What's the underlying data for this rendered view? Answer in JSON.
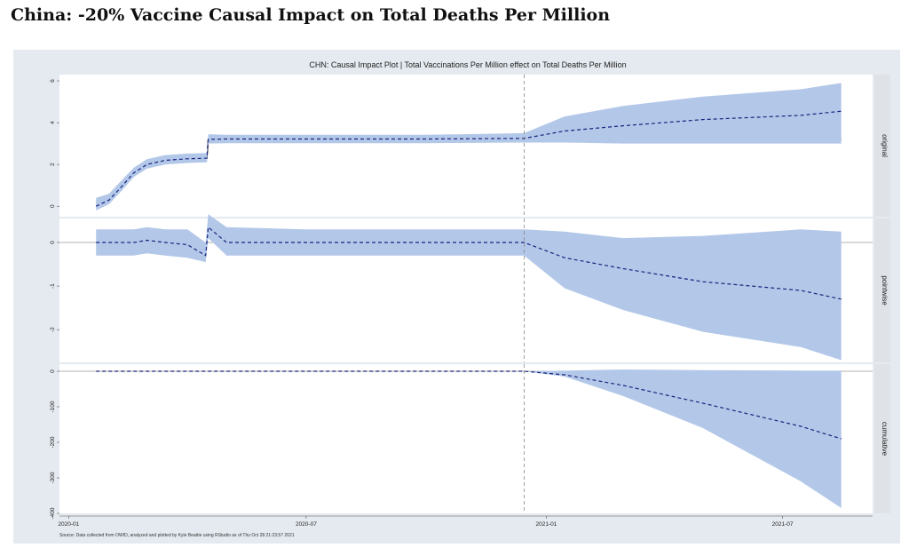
{
  "page": {
    "title": "China: -20% Vaccine Causal Impact on Total Deaths Per Million"
  },
  "figure": {
    "source_note": "Source: Data collected from OWID, analyzed and plotted by Kyle Beattie using RStudio as of Thu Oct 28 21:23:57 2021"
  },
  "chart_data": {
    "type": "line",
    "title": "CHN: Causal Impact Plot | Total Vaccinations Per Million effect on Total Deaths Per Million",
    "x_ticks": [
      "2020-01",
      "2020-07",
      "2021-01",
      "2021-07"
    ],
    "intervention_date": "2020-12-15",
    "colors": {
      "band": "#b3c8e8",
      "line_actual": "#111111",
      "line_predicted": "#1a237e",
      "zero_line": "#999999",
      "strip": "#dfe3e8"
    },
    "panels": [
      {
        "name": "original",
        "ylim": [
          -0.5,
          6.3
        ],
        "yticks": [
          0,
          2,
          4,
          6
        ],
        "series": [
          {
            "kind": "actual",
            "x": [
              "2020-01-22",
              "2020-02-01",
              "2020-02-10",
              "2020-02-20",
              "2020-03-01",
              "2020-03-15",
              "2020-04-01",
              "2020-04-16",
              "2020-04-17",
              "2020-05-01",
              "2020-07-01",
              "2020-10-01",
              "2020-12-15",
              "2021-04-01",
              "2021-08-15"
            ],
            "y": [
              0.0,
              0.3,
              0.9,
              1.6,
              2.0,
              2.2,
              2.27,
              2.3,
              3.2,
              3.22,
              3.22,
              3.22,
              3.22,
              3.22,
              3.22
            ]
          },
          {
            "kind": "predicted",
            "x": [
              "2020-01-22",
              "2020-02-01",
              "2020-02-10",
              "2020-02-20",
              "2020-03-01",
              "2020-03-15",
              "2020-04-01",
              "2020-04-16",
              "2020-04-17",
              "2020-05-01",
              "2020-07-01",
              "2020-10-01",
              "2020-12-15",
              "2021-01-15",
              "2021-03-01",
              "2021-05-01",
              "2021-07-15",
              "2021-08-15"
            ],
            "y": [
              0.0,
              0.3,
              0.9,
              1.6,
              2.0,
              2.2,
              2.27,
              2.3,
              3.2,
              3.22,
              3.22,
              3.22,
              3.25,
              3.6,
              3.85,
              4.15,
              4.35,
              4.55
            ],
            "lower": [
              -0.2,
              0.1,
              0.7,
              1.4,
              1.8,
              2.0,
              2.07,
              2.1,
              3.0,
              3.02,
              3.02,
              3.02,
              3.05,
              3.05,
              3.0,
              3.0,
              3.0,
              3.0
            ],
            "upper": [
              0.4,
              0.6,
              1.2,
              1.85,
              2.25,
              2.45,
              2.52,
              2.55,
              3.45,
              3.42,
              3.42,
              3.42,
              3.5,
              4.3,
              4.8,
              5.25,
              5.6,
              5.9
            ]
          }
        ]
      },
      {
        "name": "pointwise",
        "ylim": [
          -2.75,
          0.55
        ],
        "yticks": [
          0,
          -1,
          -2
        ],
        "series": [
          {
            "kind": "predicted",
            "x": [
              "2020-01-22",
              "2020-02-20",
              "2020-03-01",
              "2020-03-15",
              "2020-04-01",
              "2020-04-15",
              "2020-04-17",
              "2020-05-01",
              "2020-07-01",
              "2020-10-01",
              "2020-12-15",
              "2021-01-15",
              "2021-03-01",
              "2021-05-01",
              "2021-07-15",
              "2021-08-15"
            ],
            "y": [
              0.0,
              0.0,
              0.05,
              0.0,
              -0.05,
              -0.3,
              0.35,
              0.0,
              0.0,
              0.0,
              0.0,
              -0.35,
              -0.6,
              -0.9,
              -1.1,
              -1.3
            ],
            "lower": [
              -0.3,
              -0.3,
              -0.25,
              -0.3,
              -0.35,
              -0.45,
              0.1,
              -0.3,
              -0.3,
              -0.3,
              -0.3,
              -1.05,
              -1.55,
              -2.05,
              -2.4,
              -2.7
            ],
            "upper": [
              0.3,
              0.3,
              0.35,
              0.3,
              0.3,
              0.0,
              0.65,
              0.35,
              0.3,
              0.3,
              0.3,
              0.25,
              0.1,
              0.15,
              0.3,
              0.25
            ]
          }
        ]
      },
      {
        "name": "cumulative",
        "ylim": [
          -400,
          20
        ],
        "yticks": [
          0,
          -100,
          -200,
          -300,
          -400
        ],
        "series": [
          {
            "kind": "predicted",
            "x": [
              "2020-01-22",
              "2020-07-01",
              "2020-12-15",
              "2021-01-15",
              "2021-03-01",
              "2021-05-01",
              "2021-07-15",
              "2021-08-15"
            ],
            "y": [
              0,
              0,
              0,
              -10,
              -40,
              -90,
              -155,
              -190
            ],
            "lower": [
              0,
              0,
              0,
              -15,
              -70,
              -160,
              -310,
              -385
            ],
            "upper": [
              0,
              0,
              0,
              2,
              5,
              3,
              2,
              2
            ]
          }
        ]
      }
    ]
  }
}
